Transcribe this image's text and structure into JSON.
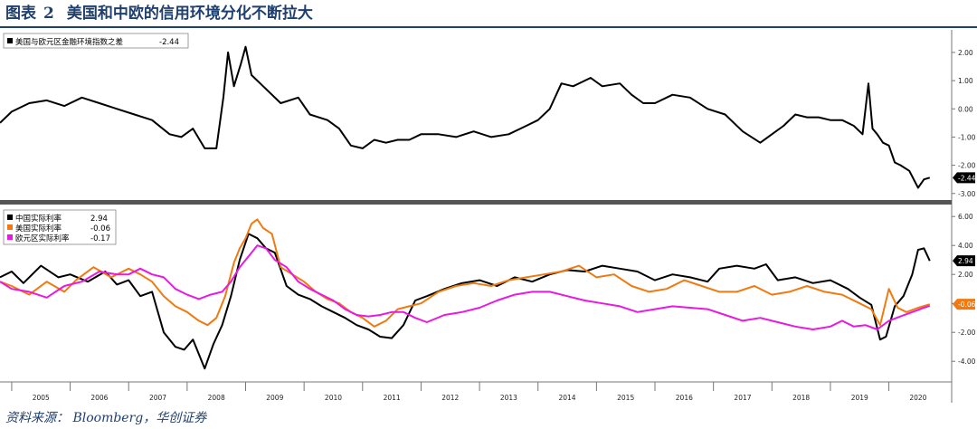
{
  "figure": {
    "label": "图表",
    "number": "2",
    "title": "美国和中欧的信用环境分化不断拉大",
    "source": "资料来源： Bloomberg，华创证券"
  },
  "colors": {
    "title": "#1f3f6e",
    "spread": "#000000",
    "china": "#000000",
    "us": "#f07a10",
    "euro": "#e819e0",
    "divider": "#555555"
  },
  "chart_data": [
    {
      "type": "line",
      "title": "",
      "x_range": [
        2004.8,
        2020.95
      ],
      "ylim": [
        -3.2,
        2.8
      ],
      "yticks": [
        "2.00",
        "1.00",
        "0.00",
        "-1.00",
        "-2.00",
        "-3.00"
      ],
      "ytick_values": [
        2,
        1,
        0,
        -1,
        -2,
        -3
      ],
      "legend_position": "top-left",
      "series": [
        {
          "name": "美国与欧元区金融环境指数之差",
          "last_label": "-2.44",
          "last_badge": "-2.44",
          "x": [
            2004.8,
            2005.0,
            2005.3,
            2005.6,
            2005.9,
            2006.2,
            2006.5,
            2006.8,
            2007.1,
            2007.4,
            2007.7,
            2007.9,
            2008.1,
            2008.3,
            2008.5,
            2008.62,
            2008.7,
            2008.8,
            2008.92,
            2009.0,
            2009.1,
            2009.3,
            2009.6,
            2009.9,
            2010.1,
            2010.4,
            2010.6,
            2010.8,
            2011.0,
            2011.2,
            2011.4,
            2011.6,
            2011.8,
            2012.0,
            2012.3,
            2012.6,
            2012.9,
            2013.2,
            2013.5,
            2013.8,
            2014.0,
            2014.2,
            2014.4,
            2014.6,
            2014.9,
            2015.1,
            2015.4,
            2015.6,
            2015.8,
            2016.0,
            2016.3,
            2016.6,
            2016.9,
            2017.2,
            2017.5,
            2017.8,
            2018.0,
            2018.2,
            2018.4,
            2018.6,
            2018.8,
            2019.0,
            2019.2,
            2019.4,
            2019.55,
            2019.65,
            2019.72,
            2019.8,
            2019.9,
            2020.0,
            2020.1,
            2020.2,
            2020.35,
            2020.5,
            2020.6,
            2020.7
          ],
          "y": [
            -0.5,
            -0.1,
            0.2,
            0.3,
            0.1,
            0.4,
            0.2,
            0.0,
            -0.2,
            -0.4,
            -0.9,
            -1.0,
            -0.7,
            -1.4,
            -1.4,
            0.4,
            2.0,
            0.8,
            1.6,
            2.2,
            1.2,
            0.8,
            0.2,
            0.4,
            -0.2,
            -0.4,
            -0.7,
            -1.3,
            -1.4,
            -1.1,
            -1.2,
            -1.1,
            -1.1,
            -0.9,
            -0.9,
            -1.0,
            -0.8,
            -1.0,
            -0.9,
            -0.6,
            -0.4,
            0.0,
            0.9,
            0.8,
            1.1,
            0.8,
            0.9,
            0.5,
            0.2,
            0.2,
            0.5,
            0.4,
            0.0,
            -0.2,
            -0.8,
            -1.2,
            -0.9,
            -0.6,
            -0.2,
            -0.3,
            -0.3,
            -0.4,
            -0.4,
            -0.6,
            -0.9,
            0.9,
            -0.7,
            -0.9,
            -1.2,
            -1.3,
            -1.9,
            -2.0,
            -2.2,
            -2.8,
            -2.5,
            -2.44
          ]
        }
      ]
    },
    {
      "type": "line",
      "title": "",
      "x_range": [
        2004.8,
        2020.95
      ],
      "ylim": [
        -5.3,
        6.7
      ],
      "yticks": [
        "6.00",
        "4.00",
        "2.00",
        "0.00",
        "-2.00",
        "-4.00"
      ],
      "ytick_values": [
        6,
        4,
        2,
        0,
        -2,
        -4
      ],
      "legend_position": "top-left",
      "xticks": [
        "2005",
        "2006",
        "2007",
        "2008",
        "2009",
        "2010",
        "2011",
        "2012",
        "2013",
        "2014",
        "2015",
        "2016",
        "2017",
        "2018",
        "2019",
        "2020"
      ],
      "xtick_values": [
        2005.5,
        2006.5,
        2007.5,
        2008.5,
        2009.5,
        2010.5,
        2011.5,
        2012.5,
        2013.5,
        2014.5,
        2015.5,
        2016.5,
        2017.5,
        2018.5,
        2019.5,
        2020.5
      ],
      "series": [
        {
          "name": "中国实际利率",
          "last_label": "2.94",
          "last_badge": "2.94",
          "x": [
            2004.8,
            2005.0,
            2005.2,
            2005.5,
            2005.8,
            2006.0,
            2006.3,
            2006.6,
            2006.8,
            2007.0,
            2007.2,
            2007.4,
            2007.6,
            2007.8,
            2007.95,
            2008.1,
            2008.3,
            2008.45,
            2008.6,
            2008.75,
            2008.9,
            2009.05,
            2009.2,
            2009.35,
            2009.5,
            2009.7,
            2009.9,
            2010.1,
            2010.3,
            2010.5,
            2010.7,
            2010.9,
            2011.1,
            2011.3,
            2011.5,
            2011.7,
            2011.9,
            2012.1,
            2012.4,
            2012.7,
            2013.0,
            2013.3,
            2013.6,
            2013.9,
            2014.2,
            2014.5,
            2014.8,
            2015.1,
            2015.4,
            2015.7,
            2016.0,
            2016.3,
            2016.6,
            2016.9,
            2017.1,
            2017.4,
            2017.7,
            2017.9,
            2018.1,
            2018.4,
            2018.7,
            2019.0,
            2019.3,
            2019.5,
            2019.7,
            2019.85,
            2019.95,
            2020.1,
            2020.25,
            2020.4,
            2020.5,
            2020.6,
            2020.7
          ],
          "y": [
            1.8,
            2.2,
            1.4,
            2.6,
            1.8,
            2.0,
            1.5,
            2.2,
            1.3,
            1.6,
            0.5,
            0.8,
            -2.0,
            -3.0,
            -3.2,
            -2.5,
            -4.5,
            -2.8,
            -1.5,
            0.5,
            3.0,
            4.8,
            4.5,
            3.8,
            3.5,
            1.2,
            0.6,
            0.3,
            -0.2,
            -0.6,
            -1.0,
            -1.5,
            -1.8,
            -2.3,
            -2.4,
            -1.5,
            0.2,
            0.5,
            1.0,
            1.4,
            1.6,
            1.2,
            1.8,
            1.5,
            2.0,
            2.3,
            2.2,
            2.6,
            2.4,
            2.2,
            1.6,
            2.0,
            1.8,
            1.5,
            2.4,
            2.6,
            2.4,
            2.7,
            1.6,
            1.8,
            1.4,
            1.6,
            1.0,
            0.4,
            -0.1,
            -2.5,
            -2.3,
            -0.2,
            0.5,
            2.0,
            3.7,
            3.8,
            2.94
          ]
        },
        {
          "name": "美国实际利率",
          "last_label": "-0.06",
          "last_badge": "-0.06",
          "x": [
            2004.8,
            2005.0,
            2005.3,
            2005.6,
            2005.9,
            2006.1,
            2006.4,
            2006.7,
            2007.0,
            2007.2,
            2007.4,
            2007.6,
            2007.8,
            2008.0,
            2008.2,
            2008.35,
            2008.5,
            2008.65,
            2008.8,
            2008.9,
            2009.0,
            2009.1,
            2009.2,
            2009.3,
            2009.45,
            2009.6,
            2009.8,
            2010.0,
            2010.2,
            2010.4,
            2010.6,
            2010.8,
            2011.0,
            2011.2,
            2011.4,
            2011.6,
            2011.8,
            2012.0,
            2012.3,
            2012.6,
            2012.9,
            2013.2,
            2013.5,
            2013.8,
            2014.1,
            2014.4,
            2014.7,
            2015.0,
            2015.3,
            2015.6,
            2015.9,
            2016.2,
            2016.5,
            2016.8,
            2017.1,
            2017.4,
            2017.7,
            2018.0,
            2018.3,
            2018.6,
            2018.9,
            2019.2,
            2019.5,
            2019.7,
            2019.85,
            2020.0,
            2020.15,
            2020.3,
            2020.5,
            2020.7
          ],
          "y": [
            1.5,
            1.2,
            0.6,
            1.5,
            0.8,
            1.6,
            2.5,
            1.8,
            2.4,
            2.0,
            1.5,
            0.5,
            -0.2,
            -0.6,
            -1.2,
            -1.5,
            -1.0,
            0.5,
            2.8,
            3.8,
            4.5,
            5.5,
            5.8,
            5.2,
            4.8,
            2.5,
            2.0,
            1.5,
            0.8,
            0.3,
            0.0,
            -0.6,
            -1.0,
            -1.6,
            -1.2,
            -0.4,
            -0.2,
            0.0,
            0.8,
            1.2,
            1.4,
            1.2,
            1.6,
            1.8,
            2.0,
            2.2,
            2.6,
            1.8,
            2.0,
            1.2,
            0.8,
            1.0,
            1.6,
            1.2,
            0.8,
            0.8,
            1.2,
            0.6,
            0.8,
            1.2,
            0.8,
            0.6,
            0.0,
            -0.4,
            -1.5,
            1.0,
            -0.3,
            -0.6,
            -0.3,
            -0.06
          ]
        },
        {
          "name": "欧元区实际利率",
          "last_label": "-0.17",
          "last_badge": "",
          "x": [
            2004.8,
            2005.0,
            2005.3,
            2005.6,
            2005.9,
            2006.2,
            2006.5,
            2006.8,
            2007.0,
            2007.2,
            2007.4,
            2007.6,
            2007.8,
            2008.0,
            2008.2,
            2008.4,
            2008.6,
            2008.75,
            2008.9,
            2009.0,
            2009.1,
            2009.2,
            2009.35,
            2009.5,
            2009.7,
            2009.9,
            2010.1,
            2010.3,
            2010.5,
            2010.7,
            2010.9,
            2011.1,
            2011.3,
            2011.5,
            2011.7,
            2011.9,
            2012.1,
            2012.4,
            2012.7,
            2013.0,
            2013.3,
            2013.6,
            2013.9,
            2014.2,
            2014.5,
            2014.8,
            2015.1,
            2015.4,
            2015.7,
            2016.0,
            2016.3,
            2016.6,
            2016.9,
            2017.2,
            2017.5,
            2017.8,
            2018.1,
            2018.4,
            2018.7,
            2019.0,
            2019.2,
            2019.4,
            2019.6,
            2019.8,
            2020.0,
            2020.2,
            2020.4,
            2020.6,
            2020.7
          ],
          "y": [
            1.5,
            1.0,
            0.8,
            0.4,
            1.2,
            1.5,
            2.2,
            2.0,
            2.0,
            2.4,
            2.0,
            1.8,
            1.0,
            0.6,
            0.3,
            0.6,
            0.8,
            1.5,
            2.5,
            3.0,
            3.5,
            4.0,
            3.8,
            3.0,
            2.5,
            1.5,
            1.0,
            0.6,
            0.2,
            -0.4,
            -0.8,
            -0.9,
            -0.8,
            -0.6,
            -0.6,
            -1.0,
            -1.3,
            -0.8,
            -0.6,
            -0.3,
            0.2,
            0.6,
            0.8,
            0.8,
            0.5,
            0.2,
            0.0,
            -0.2,
            -0.6,
            -0.4,
            -0.2,
            -0.3,
            -0.4,
            -0.8,
            -1.2,
            -1.0,
            -1.3,
            -1.6,
            -1.8,
            -1.6,
            -1.2,
            -1.6,
            -1.5,
            -1.8,
            -1.2,
            -0.9,
            -0.6,
            -0.3,
            -0.17
          ]
        }
      ]
    }
  ]
}
